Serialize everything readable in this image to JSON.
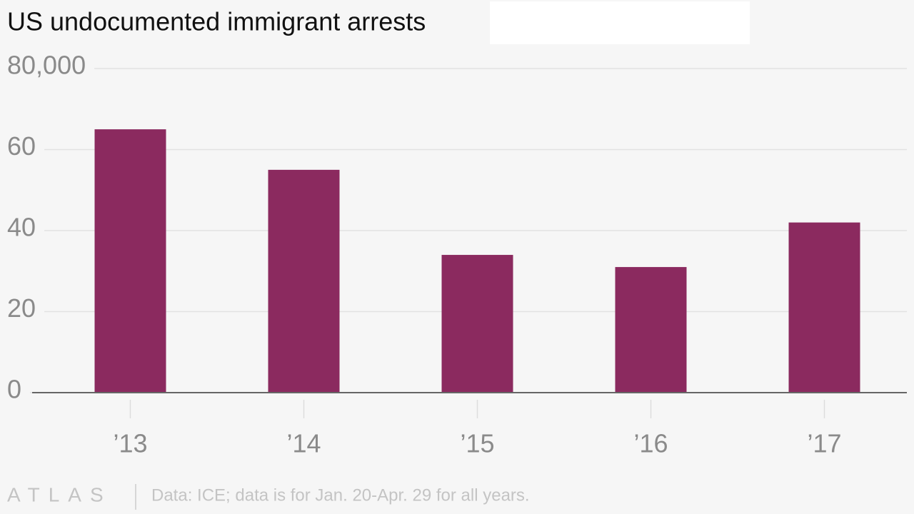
{
  "chart_data": {
    "type": "bar",
    "title": "US undocumented immigrant arrests",
    "categories": [
      "’13",
      "’14",
      "’15",
      "’16",
      "’17"
    ],
    "values": [
      65000,
      55000,
      34000,
      31000,
      42000
    ],
    "color": "#8b2a5f",
    "ylim": [
      0,
      80000
    ],
    "yticks": [
      0,
      {
        "value": 20000,
        "label": "20"
      },
      {
        "value": 40000,
        "label": "40"
      },
      {
        "value": 60000,
        "label": "60"
      },
      {
        "value": 80000,
        "label": "80,000"
      }
    ],
    "grid": true,
    "logo": "ATLAS",
    "source": "Data: ICE; data is for Jan. 20-Apr. 29 for all years."
  }
}
